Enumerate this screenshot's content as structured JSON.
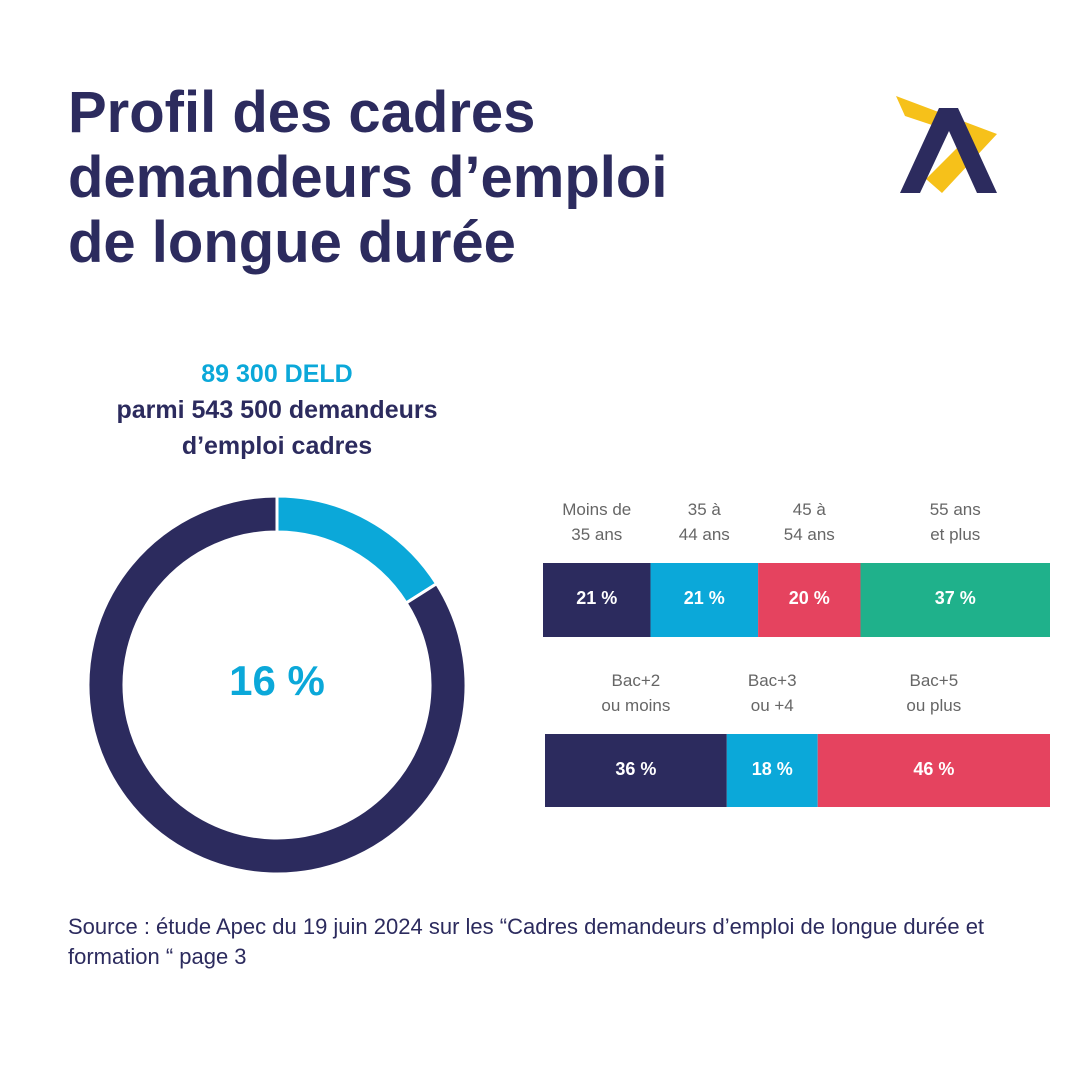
{
  "title": "Profil des cadres demandeurs d’emploi de longue durée",
  "source": "Source : étude Apec du 19 juin 2024 sur les “Cadres demandeurs d’emploi de longue durée et formation “ page 3",
  "chart_data": [
    {
      "type": "donut",
      "title": "89 300 DELD",
      "subtitle": "parmi 543 500 demandeurs d’emploi cadres",
      "values": [
        16,
        84
      ],
      "value_labels": [
        "16 %",
        null
      ],
      "colors": [
        "#0ba8d9",
        "#2c2b5e"
      ]
    },
    {
      "type": "stacked-bar",
      "series": [
        {
          "name": "Moins de\n35 ans",
          "color": "#2c2b5e",
          "values": [
            21
          ],
          "value_labels": [
            "21 %"
          ]
        },
        {
          "name": "35 à\n44 ans",
          "color": "#0ba8d9",
          "values": [
            21
          ],
          "value_labels": [
            "21 %"
          ]
        },
        {
          "name": "45 à\n54 ans",
          "color": "#e5435f",
          "values": [
            20
          ],
          "value_labels": [
            "20 %"
          ]
        },
        {
          "name": "55 ans\net plus",
          "color": "#1fb18b",
          "values": [
            37
          ],
          "value_labels": [
            "37 %"
          ]
        }
      ]
    },
    {
      "type": "stacked-bar",
      "series": [
        {
          "name": "Bac+2\nou moins",
          "color": "#2c2b5e",
          "values": [
            36
          ],
          "value_labels": [
            "36 %"
          ]
        },
        {
          "name": "Bac+3\nou +4",
          "color": "#0ba8d9",
          "values": [
            18
          ],
          "value_labels": [
            "18 %"
          ]
        },
        {
          "name": "Bac+5\nou plus",
          "color": "#e5435f",
          "values": [
            46
          ],
          "value_labels": [
            "46 %"
          ]
        }
      ]
    }
  ]
}
